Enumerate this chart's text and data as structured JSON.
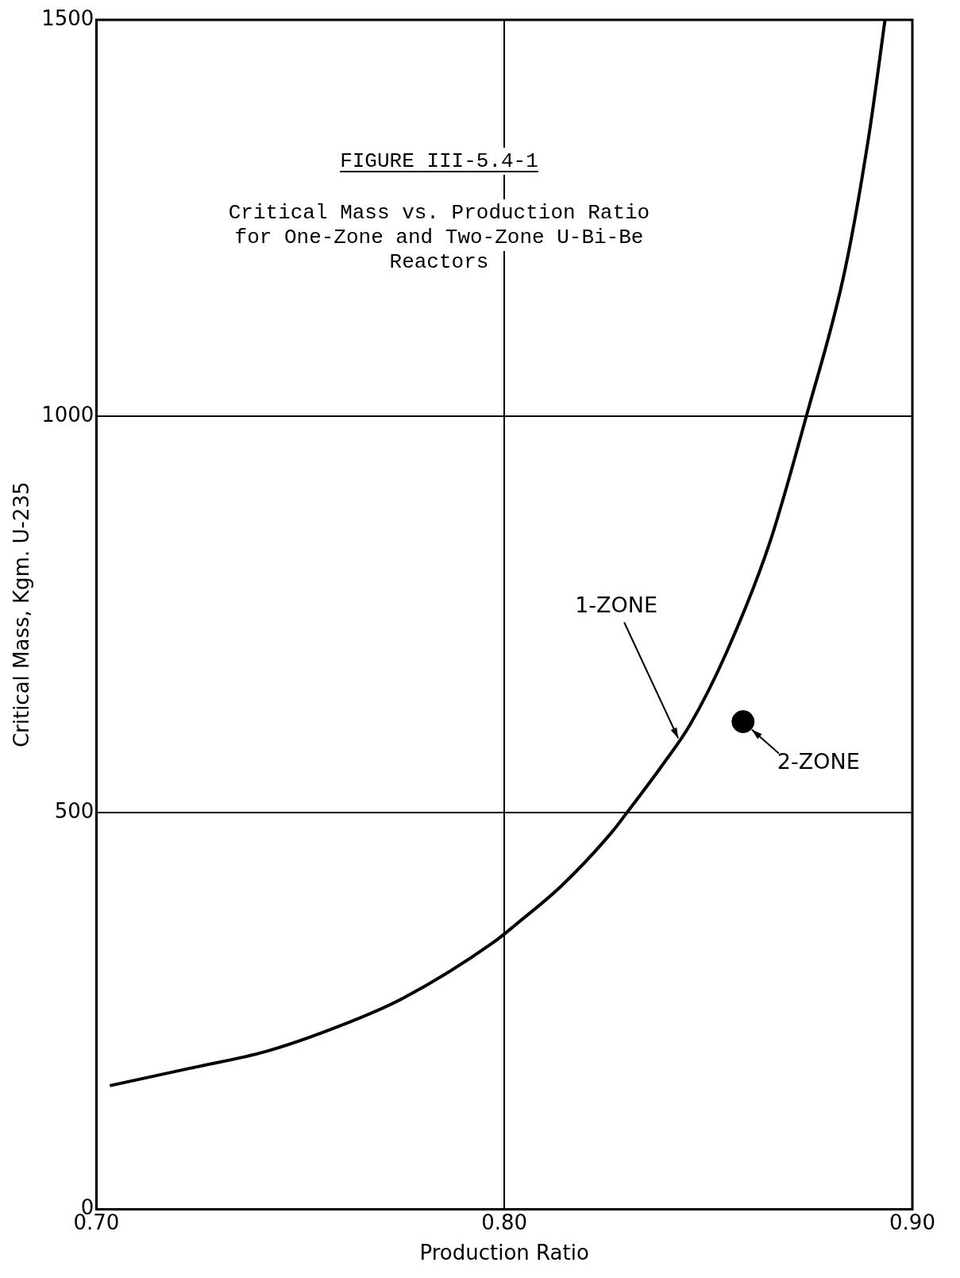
{
  "chart_data": {
    "type": "line",
    "title": "FIGURE III-5.4-1",
    "subtitle": "Critical Mass vs. Production Ratio for One-Zone and Two-Zone U-Bi-Be Reactors",
    "xlabel": "Production Ratio",
    "ylabel": "Critical Mass, Kgm. U-235",
    "series": [
      {
        "color": "#000000",
        "x": [
          0.7033,
          0.723,
          0.7415,
          0.7575,
          0.7747,
          0.7974,
          0.803,
          0.814,
          0.8264,
          0.83,
          0.8387,
          0.8455,
          0.8545,
          0.865,
          0.874,
          0.8835,
          0.8894,
          0.8933
        ],
        "values": [
          156,
          178,
          199,
          227,
          265,
          337,
          360,
          408,
          476,
          500,
          560,
          611,
          703,
          840,
          1000,
          1185,
          1356,
          1500
        ]
      },
      {
        "type": "scatter",
        "color": "#000000",
        "marker": "circle",
        "x": [
          0.8585
        ],
        "values": [
          615
        ]
      }
    ],
    "annotations": [
      {
        "text": "1-ZONE",
        "x": 0.843,
        "y": 590
      },
      {
        "text": "2-ZONE",
        "x": 0.8585,
        "y": 615
      }
    ],
    "xlim": [
      0.7,
      0.9
    ],
    "xticks": [
      {
        "value": 0.7,
        "label": "0.70"
      },
      {
        "value": 0.8,
        "label": "0.80"
      },
      {
        "value": 0.9,
        "label": "0.90"
      }
    ],
    "ylim": [
      0,
      1500
    ],
    "yticks": [
      0,
      500,
      1000,
      1500
    ],
    "grid": true,
    "legend": false,
    "marker": "none",
    "line_style": "solid"
  }
}
